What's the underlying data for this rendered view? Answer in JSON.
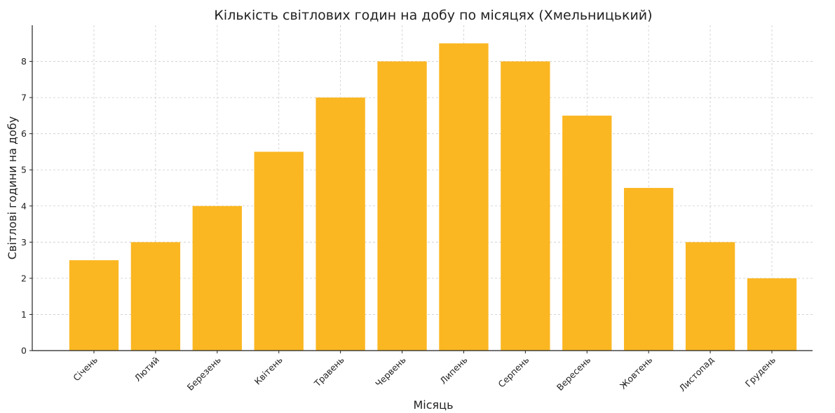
{
  "chart_data": {
    "type": "bar",
    "title": "Кількість світлових годин на добу по місяцях (Хмельницький)",
    "xlabel": "Місяць",
    "ylabel": "Світлові години на добу",
    "categories": [
      "Січень",
      "Лютий",
      "Березень",
      "Квітень",
      "Травень",
      "Червень",
      "Липень",
      "Серпень",
      "Вересень",
      "Жовтень",
      "Листопад",
      "Грудень"
    ],
    "values": [
      2.5,
      3,
      4,
      5.5,
      7,
      8,
      8.5,
      8,
      6.5,
      4.5,
      3,
      2
    ],
    "ylim": [
      0,
      9
    ],
    "yticks": [
      0,
      1,
      2,
      3,
      4,
      5,
      6,
      7,
      8
    ],
    "bar_color": "#fbb722",
    "grid": true
  }
}
